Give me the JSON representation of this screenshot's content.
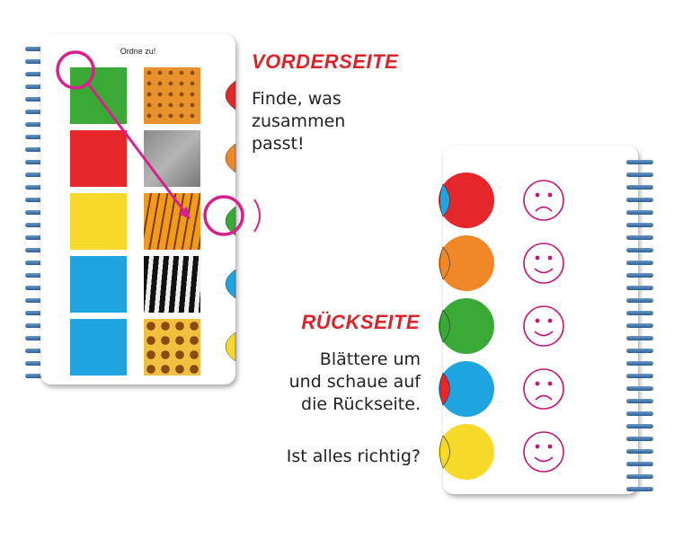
{
  "front": {
    "title": "Ordne zu!",
    "rows": [
      {
        "animal": "tiger",
        "bg": "#3aa935",
        "texture": "leopard",
        "tab": "#e02a2a"
      },
      {
        "animal": "zebra",
        "bg": "#e5262b",
        "texture": "elephant",
        "tab": "#f0882a"
      },
      {
        "animal": "giraffe",
        "bg": "#f7d92a",
        "texture": "tiger",
        "tab": "#3aa935"
      },
      {
        "animal": "elephant",
        "bg": "#1ea5df",
        "texture": "zebra",
        "tab": "#1ea5df"
      },
      {
        "animal": "leopard",
        "bg": "#1ea5df",
        "texture": "giraffe",
        "tab": "#f7d92a"
      }
    ]
  },
  "back": {
    "rows": [
      {
        "color": "#e5262b",
        "flap": "#1ea5df",
        "face": "sad"
      },
      {
        "color": "#f0882a",
        "flap": "#f0882a",
        "face": "happy"
      },
      {
        "color": "#3aa935",
        "flap": "#3aa935",
        "face": "happy"
      },
      {
        "color": "#1ea5df",
        "flap": "#e5262b",
        "face": "sad"
      },
      {
        "color": "#f7d92a",
        "flap": "#f7d92a",
        "face": "happy"
      }
    ]
  },
  "labels": {
    "front_heading": "VORDERSEITE",
    "front_text": [
      "Finde, was",
      "zusammen",
      "passt!"
    ],
    "back_heading": "RÜCKSEITE",
    "back_text": [
      "Blättere um",
      "und schaue auf",
      "die Rückseite."
    ],
    "question": "Ist alles richtig?"
  },
  "colors": {
    "accent": "#d9242a",
    "highlight": "#d6218e"
  }
}
